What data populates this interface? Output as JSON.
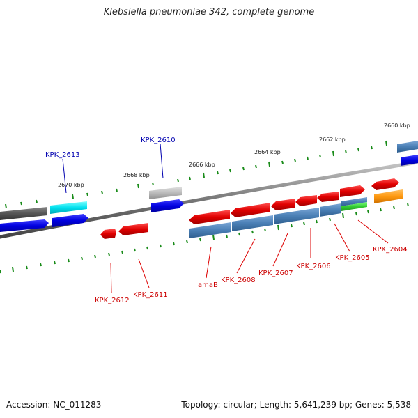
{
  "title": "Klebsiella pneumoniae 342, complete genome",
  "footer": {
    "accession": "Accession: NC_011283",
    "topology": "Topology: circular; Length: 5,641,239 bp; Genes: 5,538"
  },
  "colors": {
    "red": "#e01010",
    "blue": "#1010e0",
    "steel_blue": "#4a7fb5",
    "gray": "#555555",
    "light_gray": "#bbbbbb",
    "cyan": "#00e0ee",
    "green": "#33cc33",
    "orange": "#ff9910",
    "tick_green": "#1a8c1a",
    "label_red": "#cc0000",
    "label_blue": "#0000b0"
  },
  "kbp_labels": [
    "2660 kbp",
    "2662 kbp",
    "2664 kbp",
    "2666 kbp",
    "2668 kbp",
    "2670 kbp"
  ],
  "gene_labels": {
    "KPK_2613": "KPK_2613",
    "KPK_2610": "KPK_2610",
    "KPK_2612": "KPK_2612",
    "KPK_2611": "KPK_2611",
    "amaB": "amaB",
    "KPK_2608": "KPK_2608",
    "KPK_2607": "KPK_2607",
    "KPK_2606": "KPK_2606",
    "KPK_2605": "KPK_2605",
    "KPK_2604": "KPK_2604"
  }
}
